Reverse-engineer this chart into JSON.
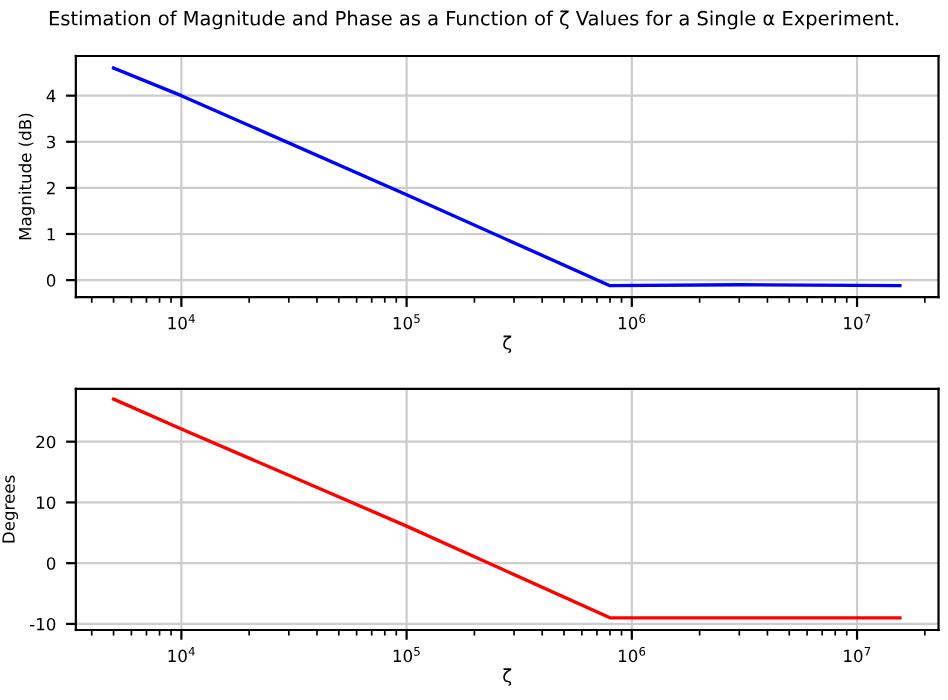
{
  "chart_data": [
    {
      "type": "line",
      "title": "Estimation of Magnitude and Phase as a Function of ζ Values for a Single α Experiment.",
      "xlabel": "ζ",
      "ylabel": "Magnitude (dB)",
      "log": "x",
      "grid": true,
      "x": [
        5000,
        10000,
        100000,
        800000,
        3000000,
        15500000
      ],
      "series": [
        {
          "color": "#0000ff",
          "values": [
            4.6,
            4.0,
            1.85,
            -0.12,
            -0.1,
            -0.12
          ]
        }
      ],
      "xlim": [
        3400,
        23000000
      ],
      "xticks": [
        {
          "value": 10000,
          "label": "10$^{4}$"
        },
        {
          "value": 100000,
          "label": "10$^{5}$"
        },
        {
          "value": 1000000,
          "label": "10$^{6}$"
        },
        {
          "value": 10000000,
          "label": "10$^{7}$"
        }
      ],
      "ylim": [
        -0.37,
        4.86
      ],
      "yticks": [
        0,
        1,
        2,
        3,
        4
      ]
    },
    {
      "type": "line",
      "xlabel": "ζ",
      "ylabel": "Degrees",
      "log": "x",
      "grid": true,
      "x": [
        5000,
        10000,
        100000,
        800000,
        3000000,
        15500000
      ],
      "series": [
        {
          "color": "#ff0000",
          "values": [
            27,
            22.1,
            6.1,
            -9,
            -9,
            -9
          ]
        }
      ],
      "xlim": [
        3400,
        23000000
      ],
      "xticks": [
        {
          "value": 10000,
          "label": "10$^{4}$"
        },
        {
          "value": 100000,
          "label": "10$^{5}$"
        },
        {
          "value": 1000000,
          "label": "10$^{6}$"
        },
        {
          "value": 10000000,
          "label": "10$^{7}$"
        }
      ],
      "ylim": [
        -11,
        28.7
      ],
      "yticks": [
        -10,
        0,
        10,
        20
      ]
    }
  ]
}
